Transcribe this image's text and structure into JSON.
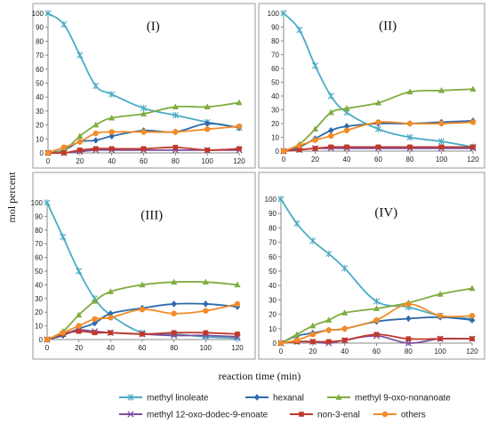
{
  "figure": {
    "xlabel": "reaction time (min)",
    "ylabel": "mol percent"
  },
  "chart_data": [
    {
      "type": "line",
      "panel": "(I)",
      "title": "(I)",
      "x": [
        0,
        10,
        20,
        30,
        40,
        60,
        80,
        100,
        120
      ],
      "xlim": [
        0,
        120
      ],
      "xticks": [
        0,
        20,
        40,
        60,
        80,
        100,
        120
      ],
      "ylim": [
        0,
        100
      ],
      "yticks": [
        0,
        10,
        20,
        30,
        40,
        50,
        60,
        70,
        80,
        90,
        100
      ],
      "grid": false,
      "series": [
        {
          "name": "methyl linoleate",
          "values": [
            100,
            92,
            70,
            48,
            42,
            32,
            27,
            22,
            18
          ]
        },
        {
          "name": "hexanal",
          "values": [
            0,
            2,
            8,
            9,
            12,
            16,
            15,
            21,
            18
          ]
        },
        {
          "name": "methyl 9-oxo-nonanoate",
          "values": [
            0,
            2,
            12,
            20,
            25,
            28,
            33,
            33,
            36
          ]
        },
        {
          "name": "methyl 12-oxo-dodec-9-enoate",
          "values": [
            0,
            0,
            1,
            2,
            2,
            2,
            2,
            2,
            2
          ]
        },
        {
          "name": "non-3-enal",
          "values": [
            0,
            0,
            2,
            3,
            3,
            3,
            4,
            2,
            3
          ]
        },
        {
          "name": "others",
          "values": [
            0,
            4,
            8,
            14,
            15,
            15,
            15,
            17,
            19
          ]
        }
      ]
    },
    {
      "type": "line",
      "panel": "(II)",
      "title": "(II)",
      "x": [
        0,
        10,
        20,
        30,
        40,
        60,
        80,
        100,
        120
      ],
      "xlim": [
        0,
        120
      ],
      "xticks": [
        0,
        20,
        40,
        60,
        80,
        100,
        120
      ],
      "ylim": [
        0,
        100
      ],
      "yticks": [
        0,
        10,
        20,
        30,
        40,
        50,
        60,
        70,
        80,
        90,
        100
      ],
      "grid": false,
      "series": [
        {
          "name": "methyl linoleate",
          "values": [
            100,
            88,
            62,
            40,
            28,
            16,
            10,
            7,
            3
          ]
        },
        {
          "name": "hexanal",
          "values": [
            0,
            3,
            9,
            15,
            18,
            20,
            20,
            21,
            22
          ]
        },
        {
          "name": "methyl 9-oxo-nonanoate",
          "values": [
            0,
            5,
            16,
            28,
            31,
            35,
            43,
            44,
            45
          ]
        },
        {
          "name": "methyl 12-oxo-dodec-9-enoate",
          "values": [
            0,
            1,
            2,
            2,
            2,
            2,
            2,
            2,
            2
          ]
        },
        {
          "name": "non-3-enal",
          "values": [
            0,
            1,
            2,
            3,
            3,
            3,
            3,
            3,
            3
          ]
        },
        {
          "name": "others",
          "values": [
            0,
            4,
            8,
            11,
            15,
            21,
            20,
            20,
            21
          ]
        }
      ]
    },
    {
      "type": "line",
      "panel": "(III)",
      "title": "(III)",
      "x": [
        0,
        10,
        20,
        30,
        40,
        60,
        80,
        100,
        120
      ],
      "xlim": [
        0,
        120
      ],
      "xticks": [
        0,
        20,
        40,
        60,
        80,
        100,
        120
      ],
      "ylim": [
        0,
        100
      ],
      "yticks": [
        0,
        10,
        20,
        30,
        40,
        50,
        60,
        70,
        80,
        90,
        100
      ],
      "grid": false,
      "series": [
        {
          "name": "methyl linoleate",
          "values": [
            100,
            75,
            50,
            30,
            18,
            5,
            4,
            2,
            1
          ]
        },
        {
          "name": "hexanal",
          "values": [
            0,
            3,
            8,
            12,
            19,
            23,
            26,
            26,
            24
          ]
        },
        {
          "name": "methyl 9-oxo-nonanoate",
          "values": [
            0,
            6,
            18,
            28,
            35,
            40,
            42,
            42,
            40
          ]
        },
        {
          "name": "methyl 12-oxo-dodec-9-enoate",
          "values": [
            0,
            4,
            7,
            6,
            5,
            4,
            3,
            3,
            2
          ]
        },
        {
          "name": "non-3-enal",
          "values": [
            0,
            4,
            6,
            5,
            5,
            4,
            5,
            5,
            4
          ]
        },
        {
          "name": "others",
          "values": [
            0,
            5,
            10,
            15,
            16,
            22,
            19,
            21,
            26
          ]
        }
      ]
    },
    {
      "type": "line",
      "panel": "(IV)",
      "title": "(IV)",
      "x": [
        0,
        10,
        20,
        30,
        40,
        60,
        80,
        100,
        120
      ],
      "xlim": [
        0,
        120
      ],
      "xticks": [
        0,
        20,
        40,
        60,
        80,
        100,
        120
      ],
      "ylim": [
        0,
        100
      ],
      "yticks": [
        0,
        10,
        20,
        30,
        40,
        50,
        60,
        70,
        80,
        90,
        100
      ],
      "grid": false,
      "series": [
        {
          "name": "methyl linoleate",
          "values": [
            100,
            83,
            71,
            62,
            52,
            29,
            25,
            19,
            17
          ]
        },
        {
          "name": "hexanal",
          "values": [
            0,
            5,
            7,
            9,
            10,
            15,
            17,
            18,
            16
          ]
        },
        {
          "name": "methyl 9-oxo-nonanoate",
          "values": [
            0,
            6,
            12,
            16,
            21,
            24,
            28,
            34,
            38
          ]
        },
        {
          "name": "methyl 12-oxo-dodec-9-enoate",
          "values": [
            0,
            1,
            1,
            0,
            2,
            5,
            0,
            3,
            3
          ]
        },
        {
          "name": "non-3-enal",
          "values": [
            0,
            1,
            1,
            1,
            2,
            6,
            3,
            3,
            3
          ]
        },
        {
          "name": "others",
          "values": [
            0,
            2,
            6,
            9,
            10,
            16,
            27,
            19,
            19
          ]
        }
      ]
    }
  ],
  "legend": {
    "placement": "bottom",
    "items": [
      {
        "name": "methyl linoleate",
        "color": "#4bacc6",
        "marker": "asterisk"
      },
      {
        "name": "hexanal",
        "color": "#2e6aa9",
        "marker": "diamond"
      },
      {
        "name": "methyl 9-oxo-nonanoate",
        "color": "#7fad3f",
        "marker": "triangle"
      },
      {
        "name": "methyl 12-oxo-dodec-9-enoate",
        "color": "#7b4fa1",
        "marker": "x"
      },
      {
        "name": "non-3-enal",
        "color": "#c0392b",
        "marker": "square"
      },
      {
        "name": "others",
        "color": "#f28c28",
        "marker": "circle"
      }
    ]
  },
  "colors": {
    "panel_border": "#9a9a9a",
    "axis": "#888888",
    "text": "#222222"
  }
}
